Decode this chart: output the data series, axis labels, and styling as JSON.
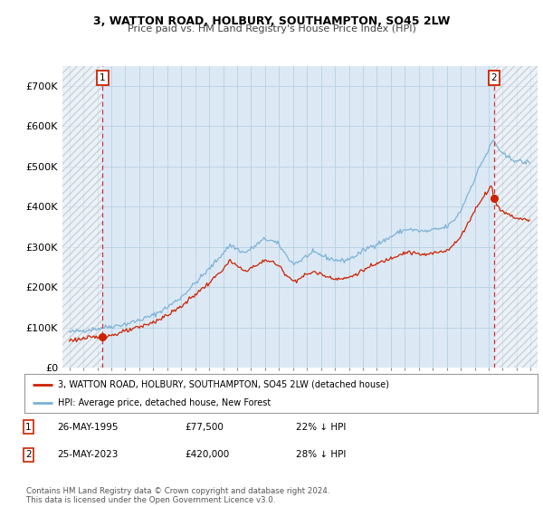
{
  "title": "3, WATTON ROAD, HOLBURY, SOUTHAMPTON, SO45 2LW",
  "subtitle": "Price paid vs. HM Land Registry's House Price Index (HPI)",
  "background_color": "#ffffff",
  "plot_bg_color": "#dce9f5",
  "grid_color": "#b8cfe0",
  "hpi_color": "#7ab0d4",
  "price_color": "#cc2200",
  "dashed_color": "#cc3333",
  "marker_color": "#cc2200",
  "sale1_date_x": 1995.38,
  "sale2_date_x": 2023.38,
  "sale1_price": 77500,
  "sale2_price": 420000,
  "ylim_max": 750000,
  "xlim_min": 1992.5,
  "xlim_max": 2026.5,
  "legend_label1": "3, WATTON ROAD, HOLBURY, SOUTHAMPTON, SO45 2LW (detached house)",
  "legend_label2": "HPI: Average price, detached house, New Forest",
  "footer": "Contains HM Land Registry data © Crown copyright and database right 2024.\nThis data is licensed under the Open Government Licence v3.0.",
  "xticks": [
    1993,
    1994,
    1995,
    1996,
    1997,
    1998,
    1999,
    2000,
    2001,
    2002,
    2003,
    2004,
    2005,
    2006,
    2007,
    2008,
    2009,
    2010,
    2011,
    2012,
    2013,
    2014,
    2015,
    2016,
    2017,
    2018,
    2019,
    2020,
    2021,
    2022,
    2023,
    2024,
    2025,
    2026
  ],
  "yticks": [
    0,
    100000,
    200000,
    300000,
    400000,
    500000,
    600000,
    700000
  ],
  "ytick_labels": [
    "£0",
    "£100K",
    "£200K",
    "£300K",
    "£400K",
    "£500K",
    "£600K",
    "£700K"
  ]
}
